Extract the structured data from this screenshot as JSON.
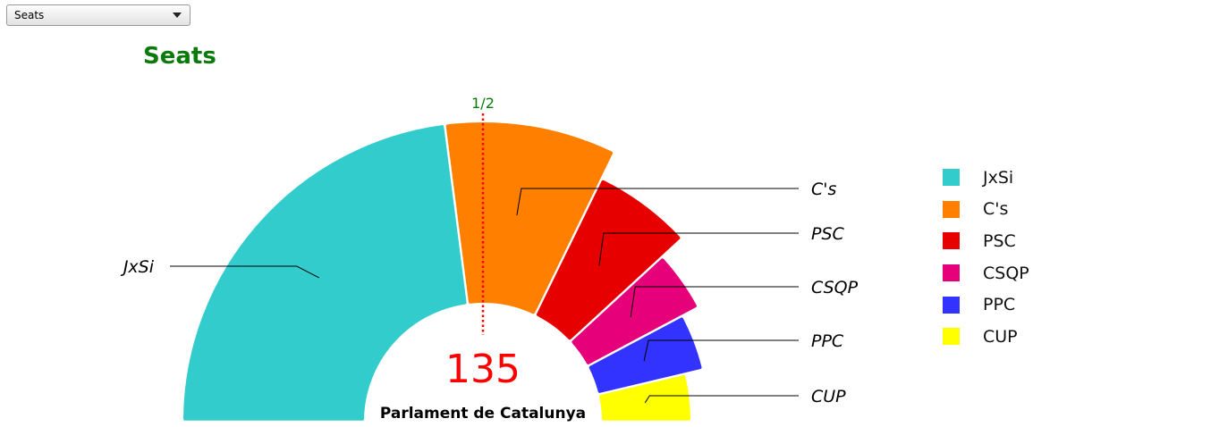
{
  "selector": {
    "selected": "Seats",
    "options": [
      "Seats"
    ]
  },
  "chart_data": {
    "type": "pie",
    "style": "parliament-semicircle",
    "title": "Seats",
    "title_color": "#0a7a0a",
    "center_total": "135",
    "center_total_color": "#ff0000",
    "subtitle": "Parlament de Catalunya",
    "majority_marker": {
      "label": "1/2",
      "label_color": "#0a7a0a",
      "line_color": "#ff0000"
    },
    "categories": [
      "JxSi",
      "C's",
      "PSC",
      "CSQP",
      "PPC",
      "CUP"
    ],
    "values": [
      62,
      25,
      16,
      11,
      11,
      10
    ],
    "colors": [
      "#33cccc",
      "#ff8000",
      "#e60000",
      "#e6007a",
      "#3333ff",
      "#ffff00"
    ],
    "legend_position": "right"
  }
}
